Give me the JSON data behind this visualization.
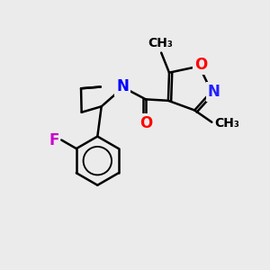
{
  "background_color": "#ebebeb",
  "bond_color": "#000000",
  "bond_width": 1.8,
  "atom_labels": {
    "N_pyrr": {
      "symbol": "N",
      "color": "#0000ff",
      "fontsize": 12,
      "fontweight": "bold"
    },
    "O_iso": {
      "symbol": "O",
      "color": "#ff0000",
      "fontsize": 12,
      "fontweight": "bold"
    },
    "N_iso": {
      "symbol": "N",
      "color": "#2020ff",
      "fontsize": 12,
      "fontweight": "bold"
    },
    "O_carbonyl": {
      "symbol": "O",
      "color": "#ff0000",
      "fontsize": 12,
      "fontweight": "bold"
    },
    "F": {
      "symbol": "F",
      "color": "#cc00cc",
      "fontsize": 12,
      "fontweight": "bold"
    }
  },
  "methyl_fontsize": 10,
  "methyl_color": "#000000"
}
